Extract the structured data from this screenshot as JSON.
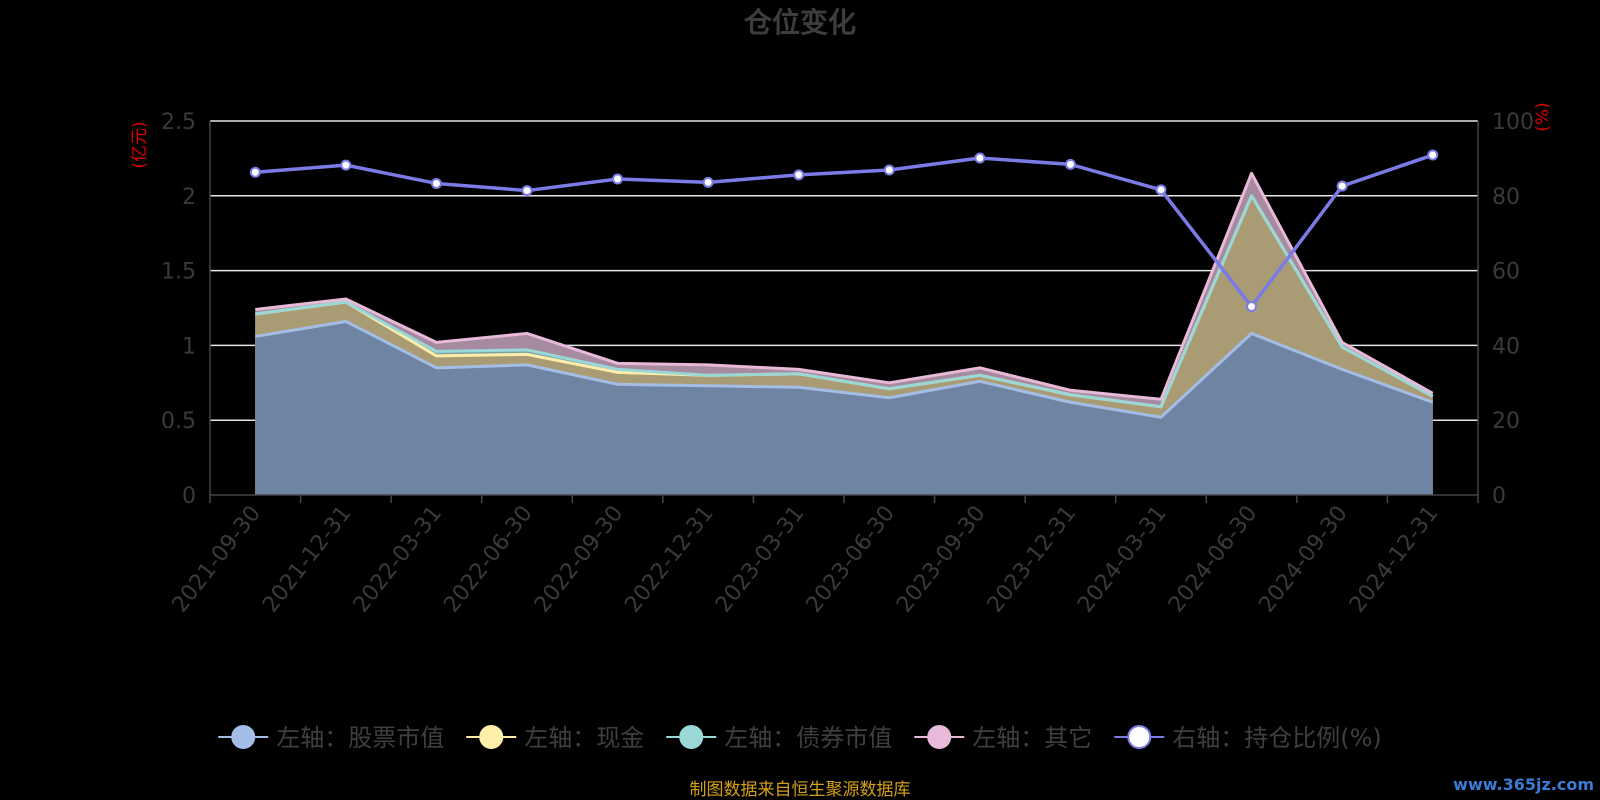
{
  "chart_data": {
    "type": "area",
    "title": "仓位变化",
    "left_unit": "(亿元)",
    "right_unit": "(%)",
    "categories": [
      "2021-09-30",
      "2021-12-31",
      "2022-03-31",
      "2022-06-30",
      "2022-09-30",
      "2022-12-31",
      "2023-03-31",
      "2023-06-30",
      "2023-09-30",
      "2023-12-31",
      "2024-03-31",
      "2024-06-30",
      "2024-09-30",
      "2024-12-31"
    ],
    "left_axis": {
      "min": 0,
      "max": 2.5,
      "ticks": [
        "0",
        "0.5",
        "1",
        "1.5",
        "2",
        "2.5"
      ]
    },
    "right_axis": {
      "min": 0,
      "max": 100,
      "ticks": [
        "0",
        "20",
        "40",
        "60",
        "80",
        "100"
      ]
    },
    "grid": true,
    "legend_position": "bottom",
    "stacked_series": [
      {
        "name": "左轴：股票市值",
        "color": "#a3bde6",
        "fill": "#6f84a2",
        "values": [
          1.06,
          1.16,
          0.85,
          0.87,
          0.74,
          0.73,
          0.72,
          0.65,
          0.76,
          0.62,
          0.52,
          1.08,
          0.84,
          0.62
        ]
      },
      {
        "name": "左轴：现金",
        "color": "#ffeeaa",
        "fill": "#a99c74",
        "values": [
          0.15,
          0.13,
          0.08,
          0.07,
          0.08,
          0.07,
          0.09,
          0.06,
          0.04,
          0.05,
          0.07,
          0.92,
          0.15,
          0.04
        ]
      },
      {
        "name": "左轴：债券市值",
        "color": "#9ad8d8",
        "fill": "#7fa2a2",
        "values": [
          0.0,
          0.0,
          0.03,
          0.03,
          0.02,
          0.0,
          0.0,
          0.0,
          0.0,
          0.0,
          0.0,
          0.0,
          0.0,
          0.0
        ]
      },
      {
        "name": "左轴：其它",
        "color": "#e8b9d8",
        "fill": "#a58aa0",
        "values": [
          0.03,
          0.02,
          0.06,
          0.11,
          0.04,
          0.07,
          0.03,
          0.04,
          0.05,
          0.03,
          0.05,
          0.15,
          0.03,
          0.02
        ]
      }
    ],
    "line_series": {
      "name": "右轴：持仓比例(%)",
      "color": "#7b7be8",
      "values": [
        86.3,
        88.2,
        83.3,
        81.4,
        84.5,
        83.6,
        85.6,
        86.9,
        90.1,
        88.4,
        81.6,
        50.4,
        82.6,
        90.9
      ]
    }
  },
  "footer": {
    "source": "制图数据来自恒生聚源数据库",
    "watermark": "www.365jz.com"
  }
}
